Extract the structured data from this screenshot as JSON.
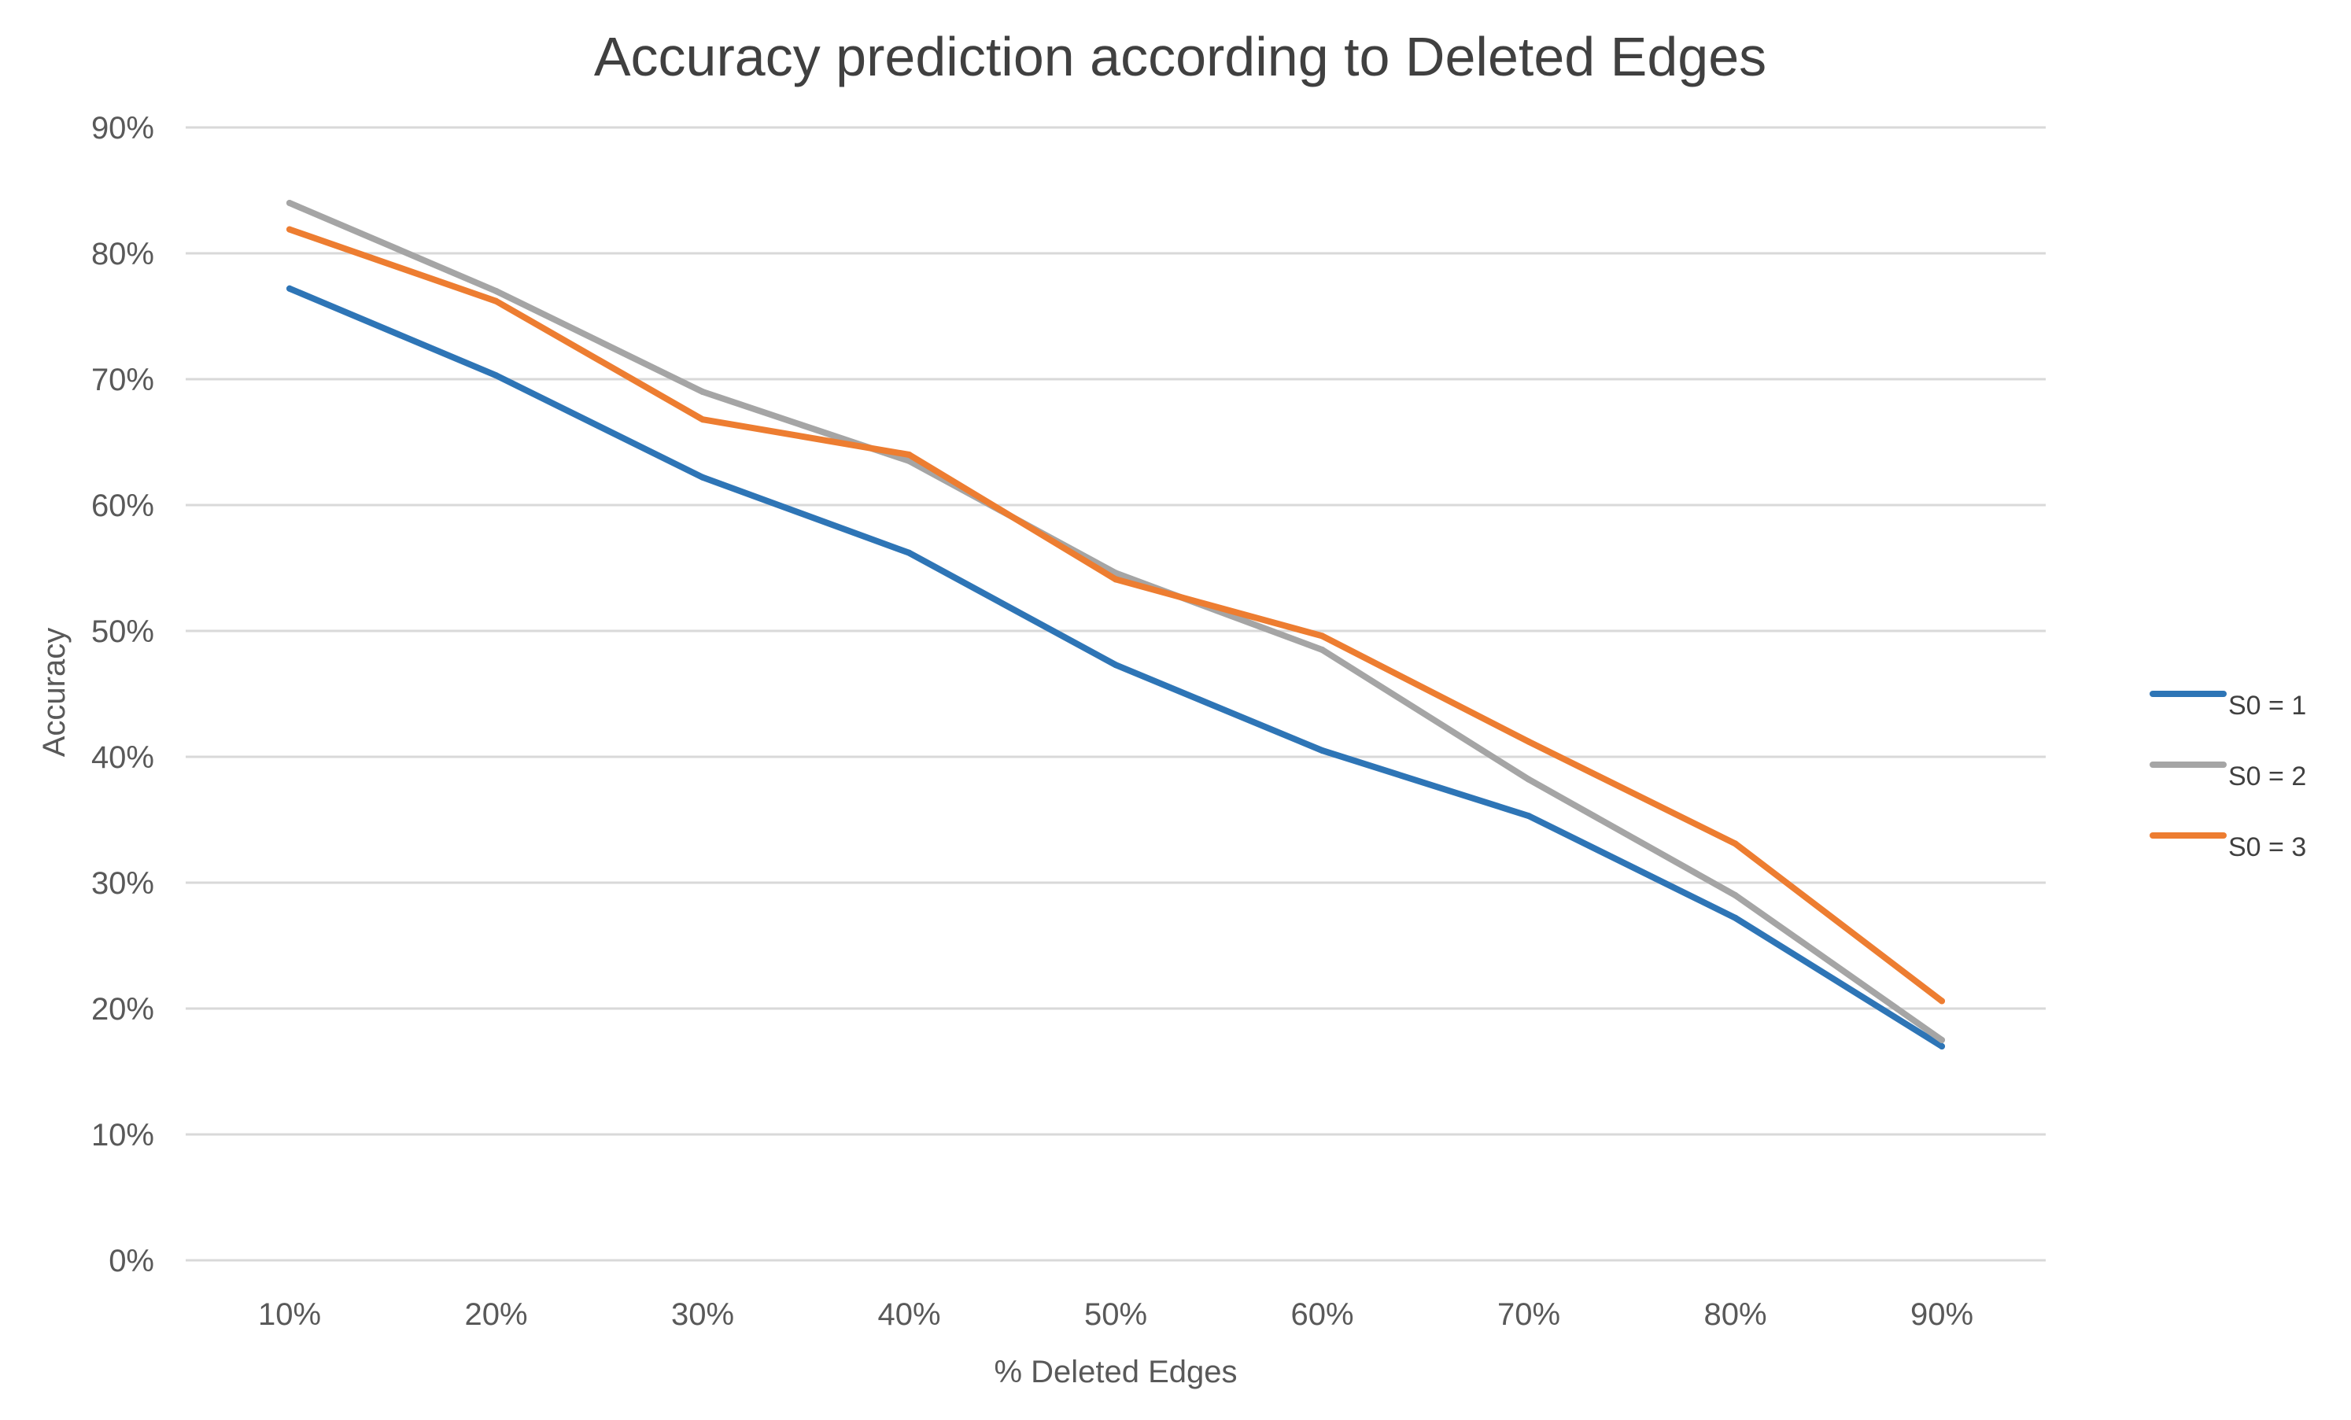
{
  "chart_data": {
    "type": "line",
    "title": "Accuracy prediction according to Deleted Edges",
    "xlabel": "% Deleted Edges",
    "ylabel": "Accuracy",
    "categories": [
      "10%",
      "20%",
      "30%",
      "40%",
      "50%",
      "60%",
      "70%",
      "80%",
      "90%"
    ],
    "y_ticks": [
      "0%",
      "10%",
      "20%",
      "30%",
      "40%",
      "50%",
      "60%",
      "70%",
      "80%",
      "90%"
    ],
    "ylim": [
      0,
      90
    ],
    "grid": true,
    "legend_position": "right",
    "series": [
      {
        "name": "S0 = 1",
        "color": "#2E75B6",
        "values": [
          77.2,
          70.3,
          62.2,
          56.2,
          47.3,
          40.5,
          35.3,
          27.2,
          17.0
        ]
      },
      {
        "name": "S0 = 2",
        "color": "#A5A5A5",
        "values": [
          84.0,
          77.0,
          69.0,
          63.5,
          54.6,
          48.5,
          38.2,
          29.0,
          17.5
        ]
      },
      {
        "name": "S0 = 3",
        "color": "#ED7D31",
        "values": [
          81.9,
          76.2,
          66.8,
          64.0,
          54.1,
          49.6,
          41.2,
          33.1,
          20.6
        ]
      }
    ]
  }
}
